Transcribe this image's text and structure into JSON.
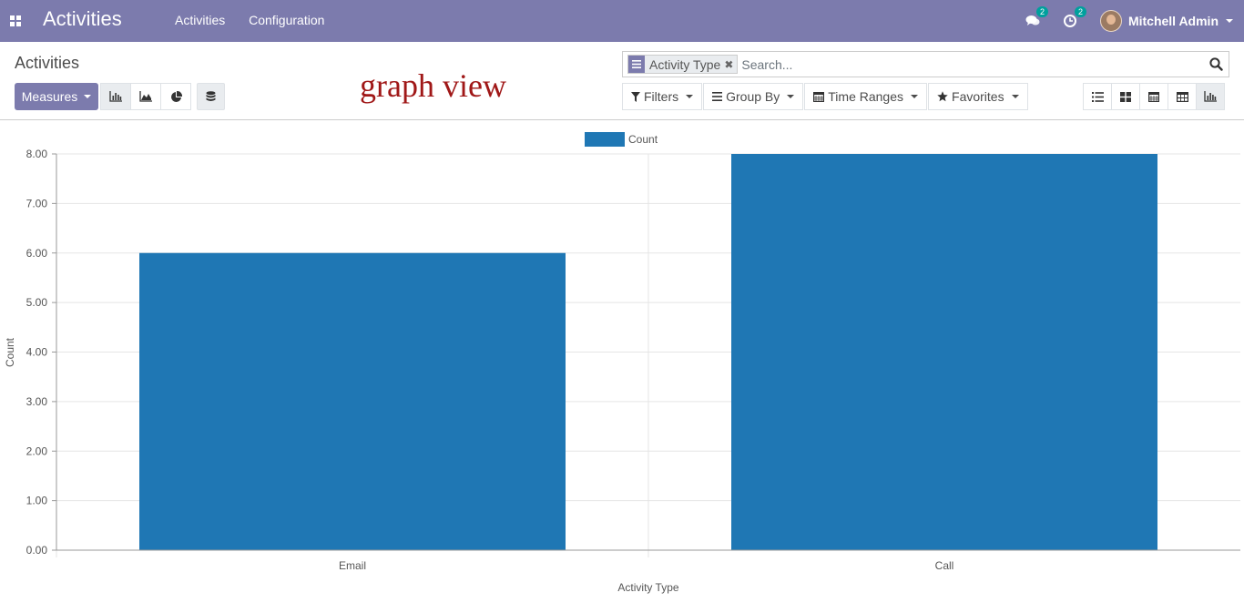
{
  "navbar": {
    "app_title": "Activities",
    "menu": [
      "Activities",
      "Configuration"
    ],
    "messages_badge": "2",
    "activities_badge": "2",
    "user_name": "Mitchell Admin",
    "bg_color": "#7c7bad"
  },
  "control_panel": {
    "breadcrumb": "Activities",
    "measures_label": "Measures",
    "chart_modes": [
      "bar-chart-icon",
      "line-chart-icon",
      "pie-chart-icon"
    ],
    "stack_icon": "database-icon",
    "annotation": "graph view",
    "search": {
      "facet_label": "Activity Type",
      "facet_icon": "group-by-icon",
      "placeholder": "Search..."
    },
    "filters": {
      "filters_label": "Filters",
      "group_by_label": "Group By",
      "time_ranges_label": "Time Ranges",
      "favorites_label": "Favorites"
    },
    "views": [
      "list-view-icon",
      "kanban-view-icon",
      "calendar-view-icon",
      "pivot-view-icon",
      "graph-view-icon"
    ]
  },
  "chart_data": {
    "type": "bar",
    "categories": [
      "Email",
      "Call"
    ],
    "series": [
      {
        "name": "Count",
        "values": [
          6,
          8
        ],
        "color": "#1f77b4"
      }
    ],
    "xlabel": "Activity Type",
    "ylabel": "Count",
    "ylim": [
      0,
      8
    ],
    "yticks": [
      "0.00",
      "1.00",
      "2.00",
      "3.00",
      "4.00",
      "5.00",
      "6.00",
      "7.00",
      "8.00"
    ],
    "grid": true,
    "legend": "top-center"
  }
}
